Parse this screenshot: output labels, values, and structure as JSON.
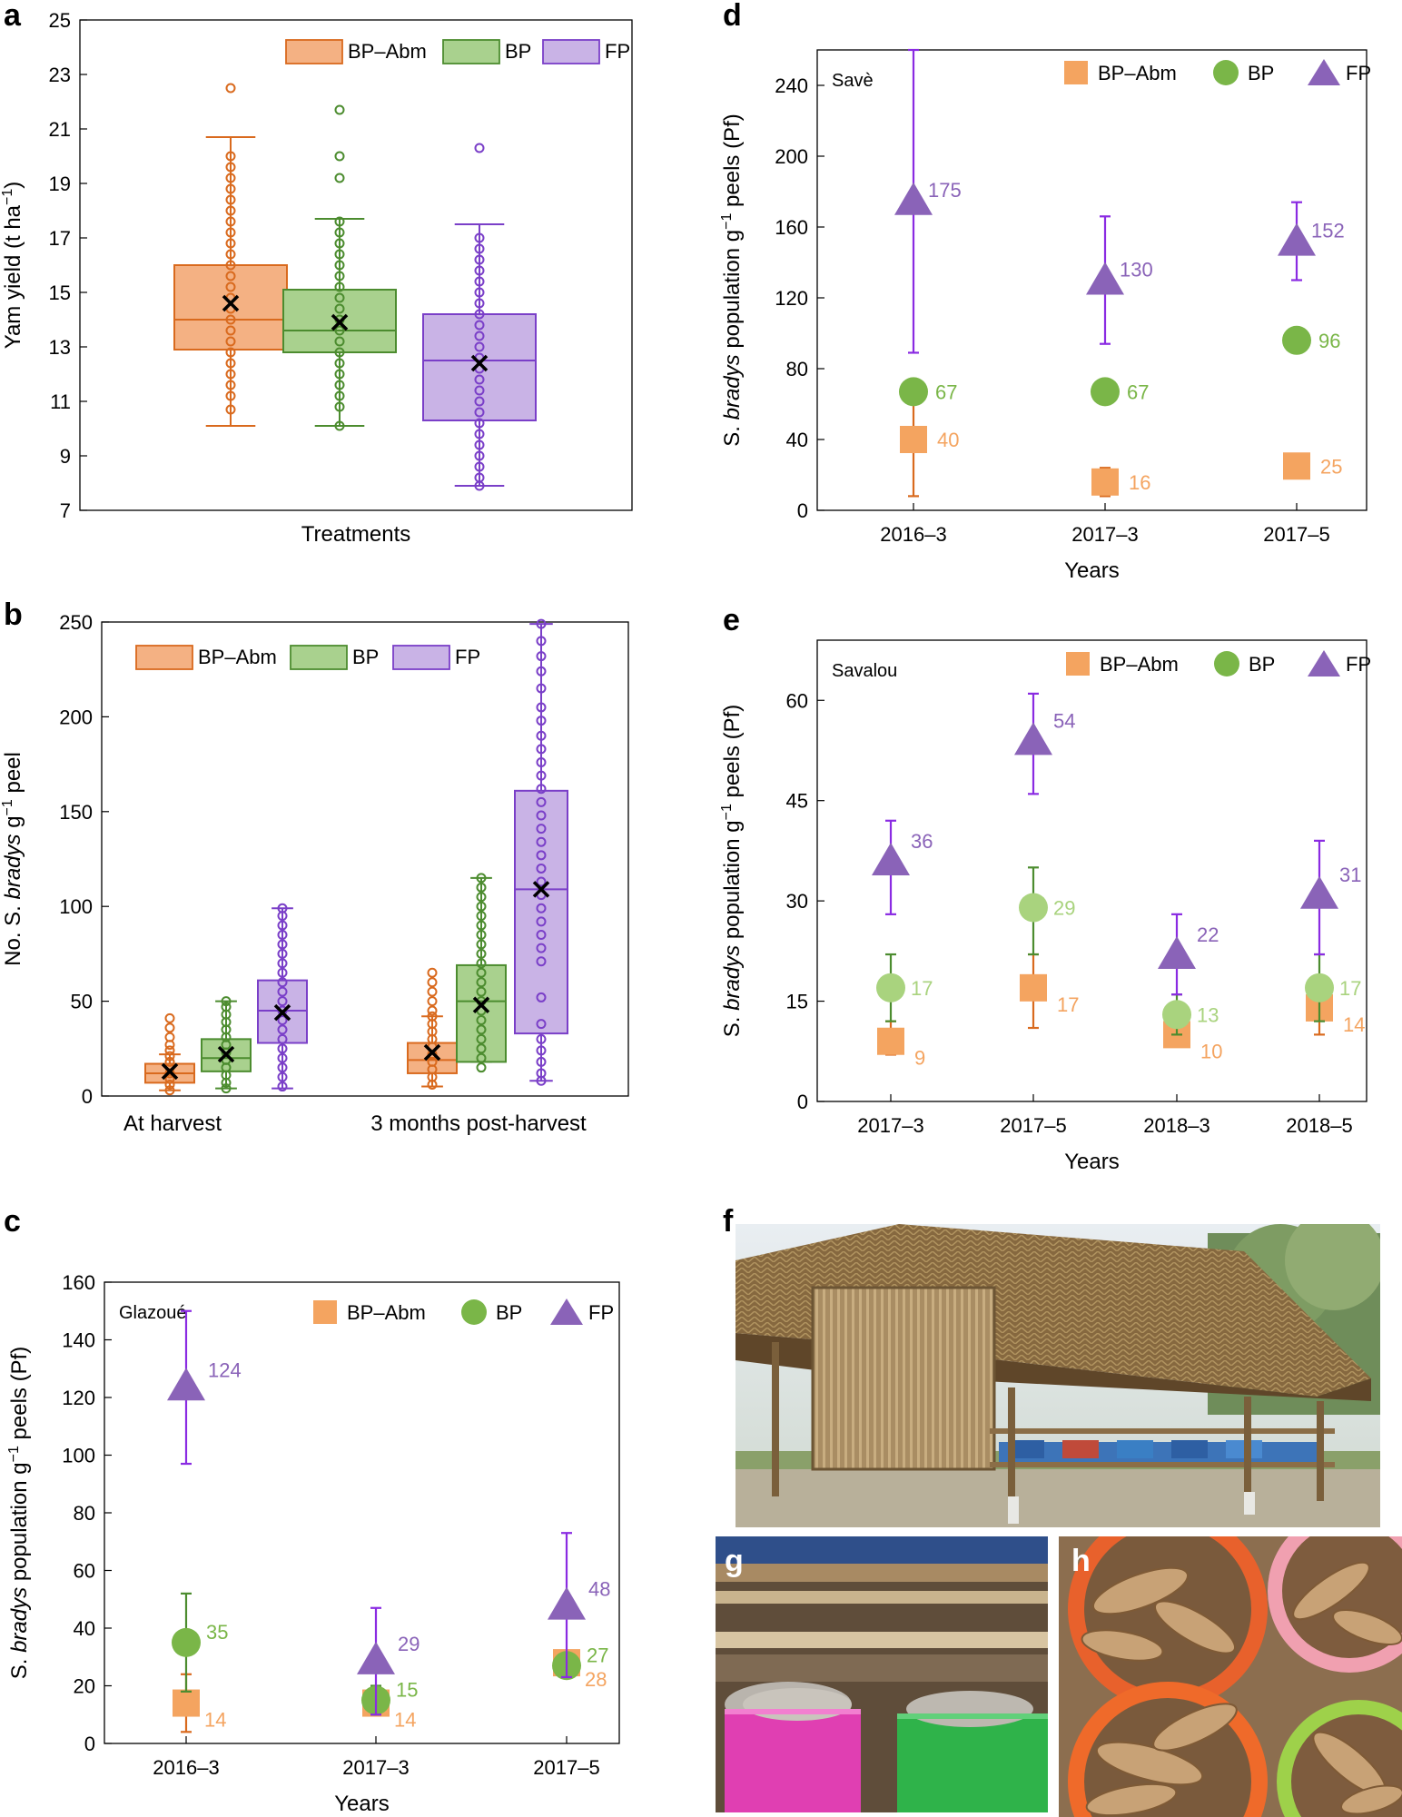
{
  "panels": {
    "a": "a",
    "b": "b",
    "c": "c",
    "d": "d",
    "e": "e",
    "f": "f",
    "g": "g",
    "h": "h"
  },
  "colors": {
    "bpabm_dark": "#d96a1e",
    "bpabm_fill": "#f4b183",
    "bpabm_marker": "#f4a460",
    "bp_dark": "#4c8c2f",
    "bp_fill": "#a9d18e",
    "bp_marker": "#7ab648",
    "bp_light": "#a9d37e",
    "fp_dark": "#7a3fc8",
    "fp_fill": "#c9b3e6",
    "fp_marker": "#8a63b8",
    "fp_err": "#8a2be2"
  },
  "chart_data": [
    {
      "id": "a",
      "type": "box",
      "ylabel": "Yam yield (t ha",
      "ylabel_sup": "−1",
      "ylabel_close": ")",
      "xlabel": "Treatments",
      "ylim": [
        7,
        25
      ],
      "yticks": [
        7,
        9,
        11,
        13,
        15,
        17,
        19,
        21,
        23,
        25
      ],
      "legend": [
        "BP–Abm",
        "BP",
        "FP"
      ],
      "boxes": [
        {
          "name": "BP–Abm",
          "min": 10.1,
          "q1": 12.9,
          "median": 14.0,
          "q3": 16.0,
          "max": 20.7,
          "mean": 14.6,
          "points": [
            22.5,
            20.0,
            19.6,
            19.2,
            18.8,
            18.4,
            18.0,
            17.6,
            17.2,
            16.8,
            16.4,
            16.0,
            15.6,
            15.2,
            14.8,
            14.4,
            14.0,
            13.6,
            13.2,
            12.8,
            12.4,
            12.0,
            11.6,
            11.2,
            10.7
          ]
        },
        {
          "name": "BP",
          "min": 10.1,
          "q1": 12.8,
          "median": 13.6,
          "q3": 15.1,
          "max": 17.7,
          "mean": 13.9,
          "points": [
            21.7,
            20.0,
            19.2,
            17.6,
            17.2,
            16.8,
            16.4,
            16.0,
            15.6,
            15.2,
            14.8,
            14.4,
            14.0,
            13.6,
            13.2,
            12.8,
            12.4,
            12.0,
            11.6,
            11.2,
            10.8,
            10.1
          ]
        },
        {
          "name": "FP",
          "min": 7.9,
          "q1": 10.3,
          "median": 12.5,
          "q3": 14.2,
          "max": 17.5,
          "mean": 12.4,
          "points": [
            20.3,
            17.0,
            16.6,
            16.2,
            15.8,
            15.4,
            15.0,
            14.6,
            14.2,
            13.8,
            13.4,
            13.0,
            12.6,
            12.2,
            11.8,
            11.4,
            11.0,
            10.6,
            10.2,
            9.8,
            9.4,
            9.0,
            8.6,
            8.2,
            7.9
          ]
        }
      ]
    },
    {
      "id": "b",
      "type": "box",
      "ylabel_pre": "No. S. ",
      "ylabel_it": "bradys",
      "ylabel_mid": " g",
      "ylabel_sup": "−1",
      "ylabel_post": " peel",
      "ylim": [
        0,
        250
      ],
      "yticks": [
        0,
        50,
        100,
        150,
        200,
        250
      ],
      "legend": [
        "BP–Abm",
        "BP",
        "FP"
      ],
      "groups": [
        "At harvest",
        "3 months post-harvest"
      ],
      "boxes": [
        {
          "group": 0,
          "name": "BP–Abm",
          "min": 3,
          "q1": 7,
          "median": 12,
          "q3": 17,
          "max": 22,
          "mean": 13,
          "points": [
            41,
            36,
            31,
            27,
            24,
            21,
            18,
            15,
            12,
            9,
            6,
            3
          ]
        },
        {
          "group": 0,
          "name": "BP",
          "min": 4,
          "q1": 13,
          "median": 20,
          "q3": 30,
          "max": 50,
          "mean": 22,
          "points": [
            50,
            47,
            43,
            39,
            35,
            31,
            27,
            23,
            19,
            15,
            11,
            7,
            4
          ]
        },
        {
          "group": 0,
          "name": "FP",
          "min": 4,
          "q1": 28,
          "median": 45,
          "q3": 61,
          "max": 99,
          "mean": 44,
          "points": [
            99,
            95,
            90,
            85,
            80,
            75,
            70,
            65,
            60,
            55,
            50,
            45,
            40,
            35,
            30,
            25,
            20,
            15,
            10,
            5
          ]
        },
        {
          "group": 1,
          "name": "BP–Abm",
          "min": 5,
          "q1": 12,
          "median": 19,
          "q3": 28,
          "max": 42,
          "mean": 23,
          "points": [
            65,
            60,
            55,
            50,
            45,
            42,
            38,
            34,
            30,
            26,
            22,
            18,
            14,
            10,
            6
          ]
        },
        {
          "group": 1,
          "name": "BP",
          "min": 18,
          "q1": 18,
          "median": 50,
          "q3": 69,
          "max": 115,
          "mean": 48,
          "points": [
            115,
            110,
            105,
            100,
            95,
            90,
            85,
            80,
            75,
            70,
            65,
            60,
            55,
            50,
            45,
            40,
            35,
            30,
            25,
            20,
            15
          ]
        },
        {
          "group": 1,
          "name": "FP",
          "min": 8,
          "q1": 33,
          "median": 109,
          "q3": 161,
          "max": 249,
          "mean": 109,
          "points": [
            249,
            240,
            232,
            224,
            215,
            205,
            198,
            190,
            183,
            176,
            169,
            162,
            155,
            148,
            141,
            134,
            127,
            120,
            113,
            106,
            99,
            92,
            85,
            78,
            71,
            52,
            38,
            30,
            24,
            18,
            12,
            8
          ]
        }
      ]
    },
    {
      "id": "c",
      "type": "scatter",
      "location": "Glazoué",
      "ylabel_pre": "S. ",
      "ylabel_it": "bradys",
      "ylabel_mid": " population g",
      "ylabel_sup": "−1",
      "ylabel_post": " peels (Pf)",
      "xlabel": "Years",
      "categories": [
        "2016–3",
        "2017–3",
        "2017–5"
      ],
      "ylim": [
        0,
        160
      ],
      "yticks": [
        0,
        20,
        40,
        60,
        80,
        100,
        120,
        140,
        160
      ],
      "legend": [
        "BP–Abm",
        "BP",
        "FP"
      ],
      "series": [
        {
          "name": "BP–Abm",
          "values": [
            14,
            14,
            28
          ],
          "lo": [
            4,
            10,
            24
          ],
          "hi": [
            24,
            18,
            32
          ],
          "labels": [
            "14",
            "14",
            "28"
          ]
        },
        {
          "name": "BP",
          "values": [
            35,
            15,
            27
          ],
          "lo": [
            18,
            10,
            24
          ],
          "hi": [
            52,
            20,
            30
          ],
          "labels": [
            "35",
            "15",
            "27"
          ]
        },
        {
          "name": "FP",
          "values": [
            124,
            29,
            48
          ],
          "lo": [
            97,
            10,
            23
          ],
          "hi": [
            150,
            47,
            73
          ],
          "labels": [
            "124",
            "29",
            "48"
          ]
        }
      ]
    },
    {
      "id": "d",
      "type": "scatter",
      "location": "Savè",
      "ylabel_pre": "S. ",
      "ylabel_it": "bradys",
      "ylabel_mid": " population g",
      "ylabel_sup": "−1",
      "ylabel_post": " peels (Pf)",
      "xlabel": "Years",
      "categories": [
        "2016–3",
        "2017–3",
        "2017–5"
      ],
      "ylim": [
        0,
        260
      ],
      "yticks": [
        0,
        40,
        80,
        120,
        160,
        200,
        240
      ],
      "legend": [
        "BP–Abm",
        "BP",
        "FP"
      ],
      "series": [
        {
          "name": "BP–Abm",
          "values": [
            40,
            16,
            25
          ],
          "lo": [
            8,
            8,
            18
          ],
          "hi": [
            72,
            24,
            32
          ],
          "labels": [
            "40",
            "16",
            "25"
          ]
        },
        {
          "name": "BP",
          "values": [
            67,
            67,
            96
          ],
          "lo": [
            62,
            60,
            90
          ],
          "hi": [
            74,
            74,
            102
          ],
          "labels": [
            "67",
            "67",
            "96"
          ]
        },
        {
          "name": "FP",
          "values": [
            175,
            130,
            152
          ],
          "lo": [
            89,
            94,
            130
          ],
          "hi": [
            260,
            166,
            174
          ],
          "labels": [
            "175",
            "130",
            "152"
          ]
        }
      ]
    },
    {
      "id": "e",
      "type": "scatter",
      "location": "Savalou",
      "ylabel_pre": "S. ",
      "ylabel_it": "bradys",
      "ylabel_mid": " population g",
      "ylabel_sup": "−1",
      "ylabel_post": " peels (Pf)",
      "xlabel": "Years",
      "categories": [
        "2017–3",
        "2017–5",
        "2018–3",
        "2018–5"
      ],
      "ylim": [
        0,
        69
      ],
      "yticks": [
        0,
        15,
        30,
        45,
        60
      ],
      "legend": [
        "BP–Abm",
        "BP",
        "FP"
      ],
      "series": [
        {
          "name": "BP–Abm",
          "values": [
            9,
            17,
            10,
            14
          ],
          "lo": [
            7,
            11,
            9,
            10
          ],
          "hi": [
            12,
            22,
            12,
            17
          ],
          "labels": [
            "9",
            "17",
            "10",
            "14"
          ]
        },
        {
          "name": "BP",
          "values": [
            17,
            29,
            13,
            17
          ],
          "lo": [
            12,
            22,
            10,
            12
          ],
          "hi": [
            22,
            35,
            16,
            22
          ],
          "labels": [
            "17",
            "29",
            "13",
            "17"
          ]
        },
        {
          "name": "FP",
          "values": [
            36,
            54,
            22,
            31
          ],
          "lo": [
            28,
            46,
            16,
            22
          ],
          "hi": [
            42,
            61,
            28,
            39
          ],
          "labels": [
            "36",
            "54",
            "22",
            "31"
          ]
        }
      ]
    }
  ]
}
